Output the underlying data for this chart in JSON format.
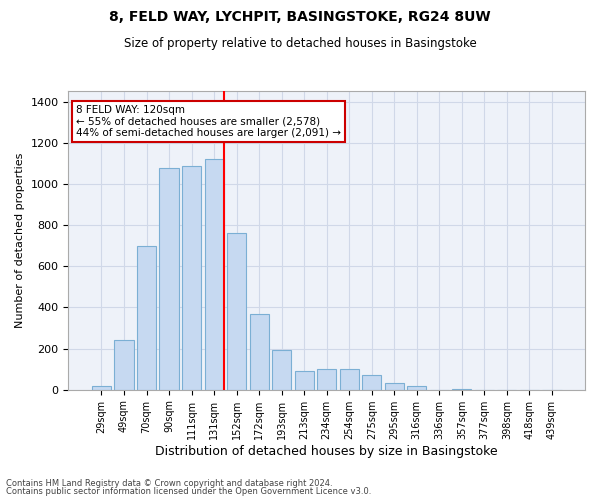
{
  "title1": "8, FELD WAY, LYCHPIT, BASINGSTOKE, RG24 8UW",
  "title2": "Size of property relative to detached houses in Basingstoke",
  "xlabel": "Distribution of detached houses by size in Basingstoke",
  "ylabel": "Number of detached properties",
  "bin_labels": [
    "29sqm",
    "49sqm",
    "70sqm",
    "90sqm",
    "111sqm",
    "131sqm",
    "152sqm",
    "172sqm",
    "193sqm",
    "213sqm",
    "234sqm",
    "254sqm",
    "275sqm",
    "295sqm",
    "316sqm",
    "336sqm",
    "357sqm",
    "377sqm",
    "398sqm",
    "418sqm",
    "439sqm"
  ],
  "bar_heights": [
    20,
    240,
    700,
    1080,
    1090,
    1120,
    760,
    370,
    195,
    90,
    100,
    100,
    70,
    35,
    20,
    0,
    5,
    0,
    0,
    0,
    0
  ],
  "bar_color": "#c6d9f1",
  "bar_edge_color": "#7bafd4",
  "grid_color": "#d0d8e8",
  "bg_color": "#eef2f9",
  "red_line_x": 5.45,
  "property_label": "8 FELD WAY: 120sqm",
  "annotation_line1": "← 55% of detached houses are smaller (2,578)",
  "annotation_line2": "44% of semi-detached houses are larger (2,091) →",
  "annotation_box_color": "#ffffff",
  "annotation_border_color": "#cc0000",
  "footer1": "Contains HM Land Registry data © Crown copyright and database right 2024.",
  "footer2": "Contains public sector information licensed under the Open Government Licence v3.0.",
  "ylim": [
    0,
    1450
  ],
  "yticks": [
    0,
    200,
    400,
    600,
    800,
    1000,
    1200,
    1400
  ]
}
